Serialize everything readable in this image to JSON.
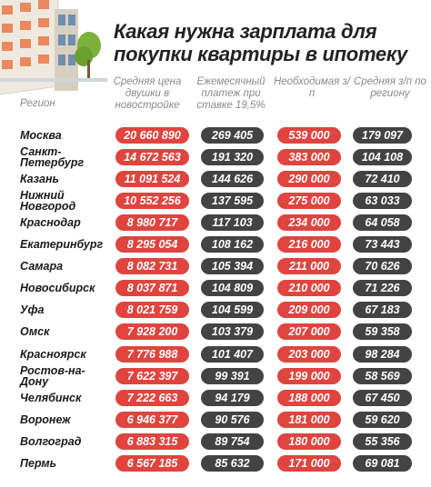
{
  "title": "Какая нужна зарплата для покупки квартиры в ипотеку",
  "headers": {
    "region": "Регион",
    "price": "Средняя цена двушки в новостройке",
    "payment": "Ежемесячный платеж при ставке 19,5%",
    "required_salary": "Необходимая з/п",
    "avg_salary": "Средняя з/п по региону"
  },
  "colors": {
    "red_pill": "#e0443f",
    "dark_pill": "#434343"
  },
  "chart_data": {
    "type": "table",
    "title": "Какая нужна зарплата для покупки квартиры в ипотеку",
    "columns": [
      "Регион",
      "Средняя цена двушки в новостройке",
      "Ежемесячный платеж при ставке 19,5%",
      "Необходимая з/п",
      "Средняя з/п по региону"
    ],
    "rows": [
      {
        "region": "Москва",
        "price": "20 660 890",
        "payment": "269 405",
        "required": "539 000",
        "avg": "179 097"
      },
      {
        "region": "Санкт-Петербург",
        "price": "14 672 563",
        "payment": "191 320",
        "required": "383 000",
        "avg": "104 108"
      },
      {
        "region": "Казань",
        "price": "11 091 524",
        "payment": "144 626",
        "required": "290 000",
        "avg": "72 410"
      },
      {
        "region": "Нижний Новгород",
        "price": "10 552 256",
        "payment": "137 595",
        "required": "275 000",
        "avg": "63 033"
      },
      {
        "region": "Краснодар",
        "price": "8 980 717",
        "payment": "117 103",
        "required": "234 000",
        "avg": "64 058"
      },
      {
        "region": "Екатеринбург",
        "price": "8 295 054",
        "payment": "108 162",
        "required": "216 000",
        "avg": "73 443"
      },
      {
        "region": "Самара",
        "price": "8 082 731",
        "payment": "105 394",
        "required": "211 000",
        "avg": "70 626"
      },
      {
        "region": "Новосибирск",
        "price": "8 037 871",
        "payment": "104 809",
        "required": "210 000",
        "avg": "71 226"
      },
      {
        "region": "Уфа",
        "price": "8 021 759",
        "payment": "104 599",
        "required": "209 000",
        "avg": "67 183"
      },
      {
        "region": "Омск",
        "price": "7 928 200",
        "payment": "103 379",
        "required": "207 000",
        "avg": "59 358"
      },
      {
        "region": "Красноярск",
        "price": "7 776 988",
        "payment": "101 407",
        "required": "203 000",
        "avg": "98 284"
      },
      {
        "region": "Ростов-на-Дону",
        "price": "7 622 397",
        "payment": "99 391",
        "required": "199 000",
        "avg": "58 569"
      },
      {
        "region": "Челябинск",
        "price": "7 222 663",
        "payment": "94 179",
        "required": "188 000",
        "avg": "67 450"
      },
      {
        "region": "Воронеж",
        "price": "6 946 377",
        "payment": "90 576",
        "required": "181 000",
        "avg": "59 620"
      },
      {
        "region": "Волгоград",
        "price": "6 883 315",
        "payment": "89 754",
        "required": "180 000",
        "avg": "55 356"
      },
      {
        "region": "Пермь",
        "price": "6 567 185",
        "payment": "85 632",
        "required": "171 000",
        "avg": "69 081"
      }
    ]
  }
}
